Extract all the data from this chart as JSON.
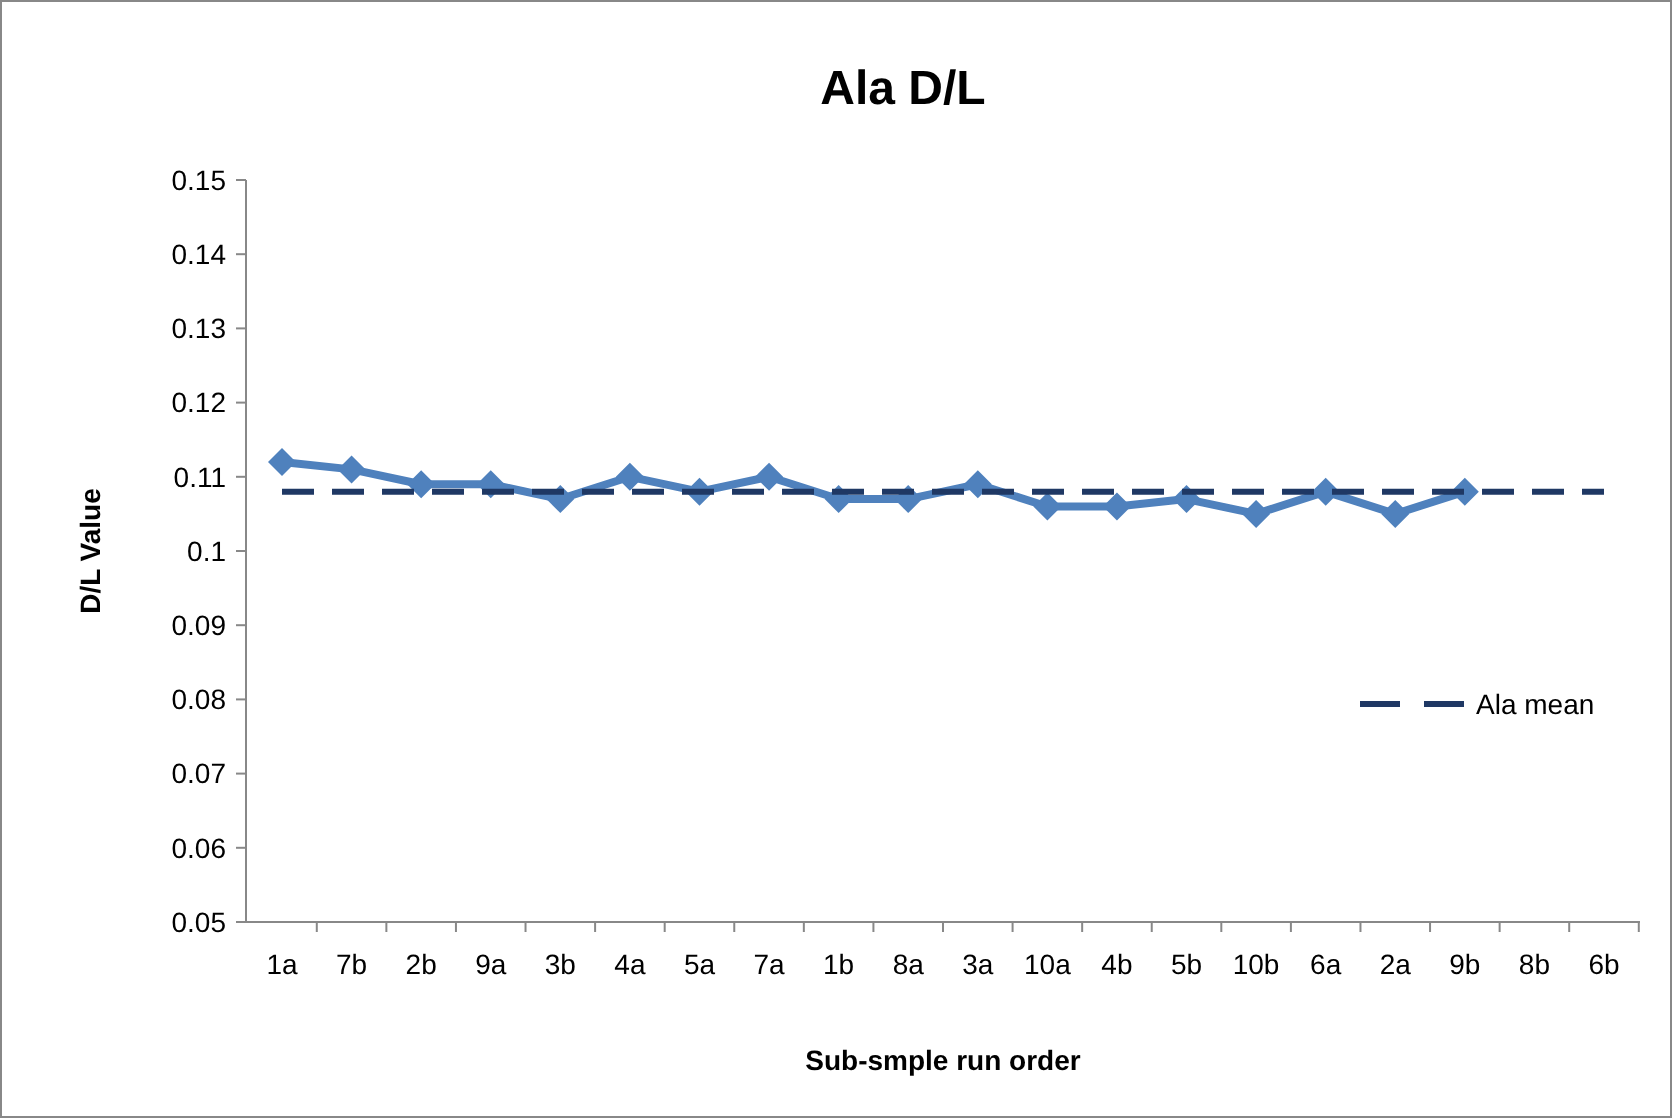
{
  "chart_data": {
    "type": "line",
    "title": "Ala D/L",
    "xlabel": "Sub-smple run order",
    "ylabel": "D/L Value",
    "categories": [
      "1a",
      "7b",
      "2b",
      "9a",
      "3b",
      "4a",
      "5a",
      "7a",
      "1b",
      "8a",
      "3a",
      "10a",
      "4b",
      "5b",
      "10b",
      "6a",
      "2a",
      "9b",
      "8b",
      "6b"
    ],
    "series": [
      {
        "color": "#4f81bd",
        "marker": "diamond",
        "line_style": "solid",
        "values": [
          0.112,
          0.111,
          0.109,
          0.109,
          0.107,
          0.11,
          0.108,
          0.11,
          0.107,
          0.107,
          0.109,
          0.106,
          0.106,
          0.107,
          0.105,
          0.108,
          0.105,
          0.108,
          null,
          null
        ]
      },
      {
        "name": "Ala mean",
        "color": "#1f3864",
        "marker": "none",
        "line_style": "dashed",
        "values": [
          0.108,
          0.108,
          0.108,
          0.108,
          0.108,
          0.108,
          0.108,
          0.108,
          0.108,
          0.108,
          0.108,
          0.108,
          0.108,
          0.108,
          0.108,
          0.108,
          0.108,
          0.108,
          0.108,
          0.108
        ]
      }
    ],
    "ylim": [
      0.05,
      0.15
    ],
    "yticks": [
      0.05,
      0.06,
      0.07,
      0.08,
      0.09,
      0.1,
      0.11,
      0.12,
      0.13,
      0.14,
      0.15
    ],
    "grid": false,
    "legend": "right"
  }
}
